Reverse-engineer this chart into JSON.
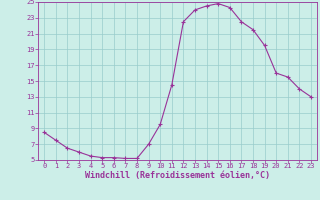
{
  "x": [
    0,
    1,
    2,
    3,
    4,
    5,
    6,
    7,
    8,
    9,
    10,
    11,
    12,
    13,
    14,
    15,
    16,
    17,
    18,
    19,
    20,
    21,
    22,
    23
  ],
  "y": [
    8.5,
    7.5,
    6.5,
    6.0,
    5.5,
    5.3,
    5.3,
    5.2,
    5.2,
    7.0,
    9.5,
    14.5,
    22.5,
    24.0,
    24.5,
    24.8,
    24.3,
    22.5,
    21.5,
    19.5,
    16.0,
    15.5,
    14.0,
    13.0
  ],
  "line_color": "#993399",
  "marker": "+",
  "marker_size": 3,
  "marker_lw": 0.8,
  "line_width": 0.8,
  "bg_color": "#cceee8",
  "grid_color": "#99cccc",
  "xlabel": "Windchill (Refroidissement éolien,°C)",
  "xlabel_color": "#993399",
  "tick_color": "#993399",
  "spine_color": "#993399",
  "ylim": [
    5,
    25
  ],
  "xlim": [
    -0.5,
    23.5
  ],
  "yticks": [
    5,
    7,
    9,
    11,
    13,
    15,
    17,
    19,
    21,
    23,
    25
  ],
  "xticks": [
    0,
    1,
    2,
    3,
    4,
    5,
    6,
    7,
    8,
    9,
    10,
    11,
    12,
    13,
    14,
    15,
    16,
    17,
    18,
    19,
    20,
    21,
    22,
    23
  ],
  "tick_fontsize": 5.0,
  "xlabel_fontsize": 6.0,
  "xlabel_fontweight": "bold"
}
